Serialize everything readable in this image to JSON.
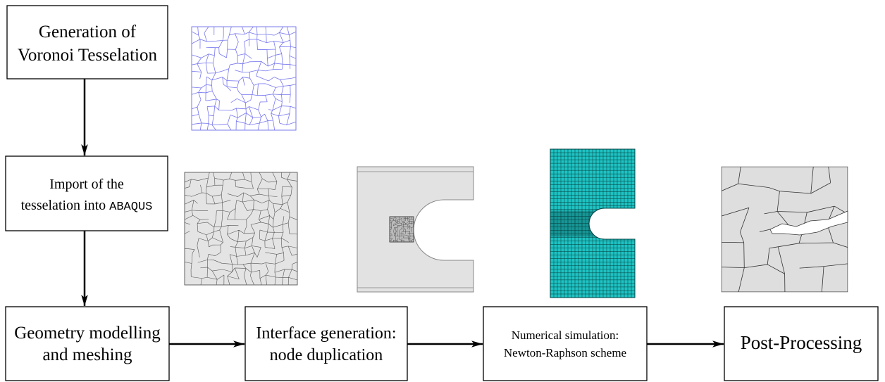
{
  "steps": [
    {
      "lines": [
        "Generation of",
        "Voronoi Tesselation"
      ]
    },
    {
      "lines": [
        "Import of the",
        "tesselation into"
      ],
      "code": "ABAQUS"
    },
    {
      "lines": [
        "Geometry modelling",
        "and meshing"
      ]
    },
    {
      "lines": [
        "Interface generation:",
        "node duplication"
      ]
    },
    {
      "lines": [
        "Numerical simulation:",
        "Newton-Raphson scheme"
      ]
    },
    {
      "lines": [
        "Post-Processing"
      ]
    }
  ]
}
